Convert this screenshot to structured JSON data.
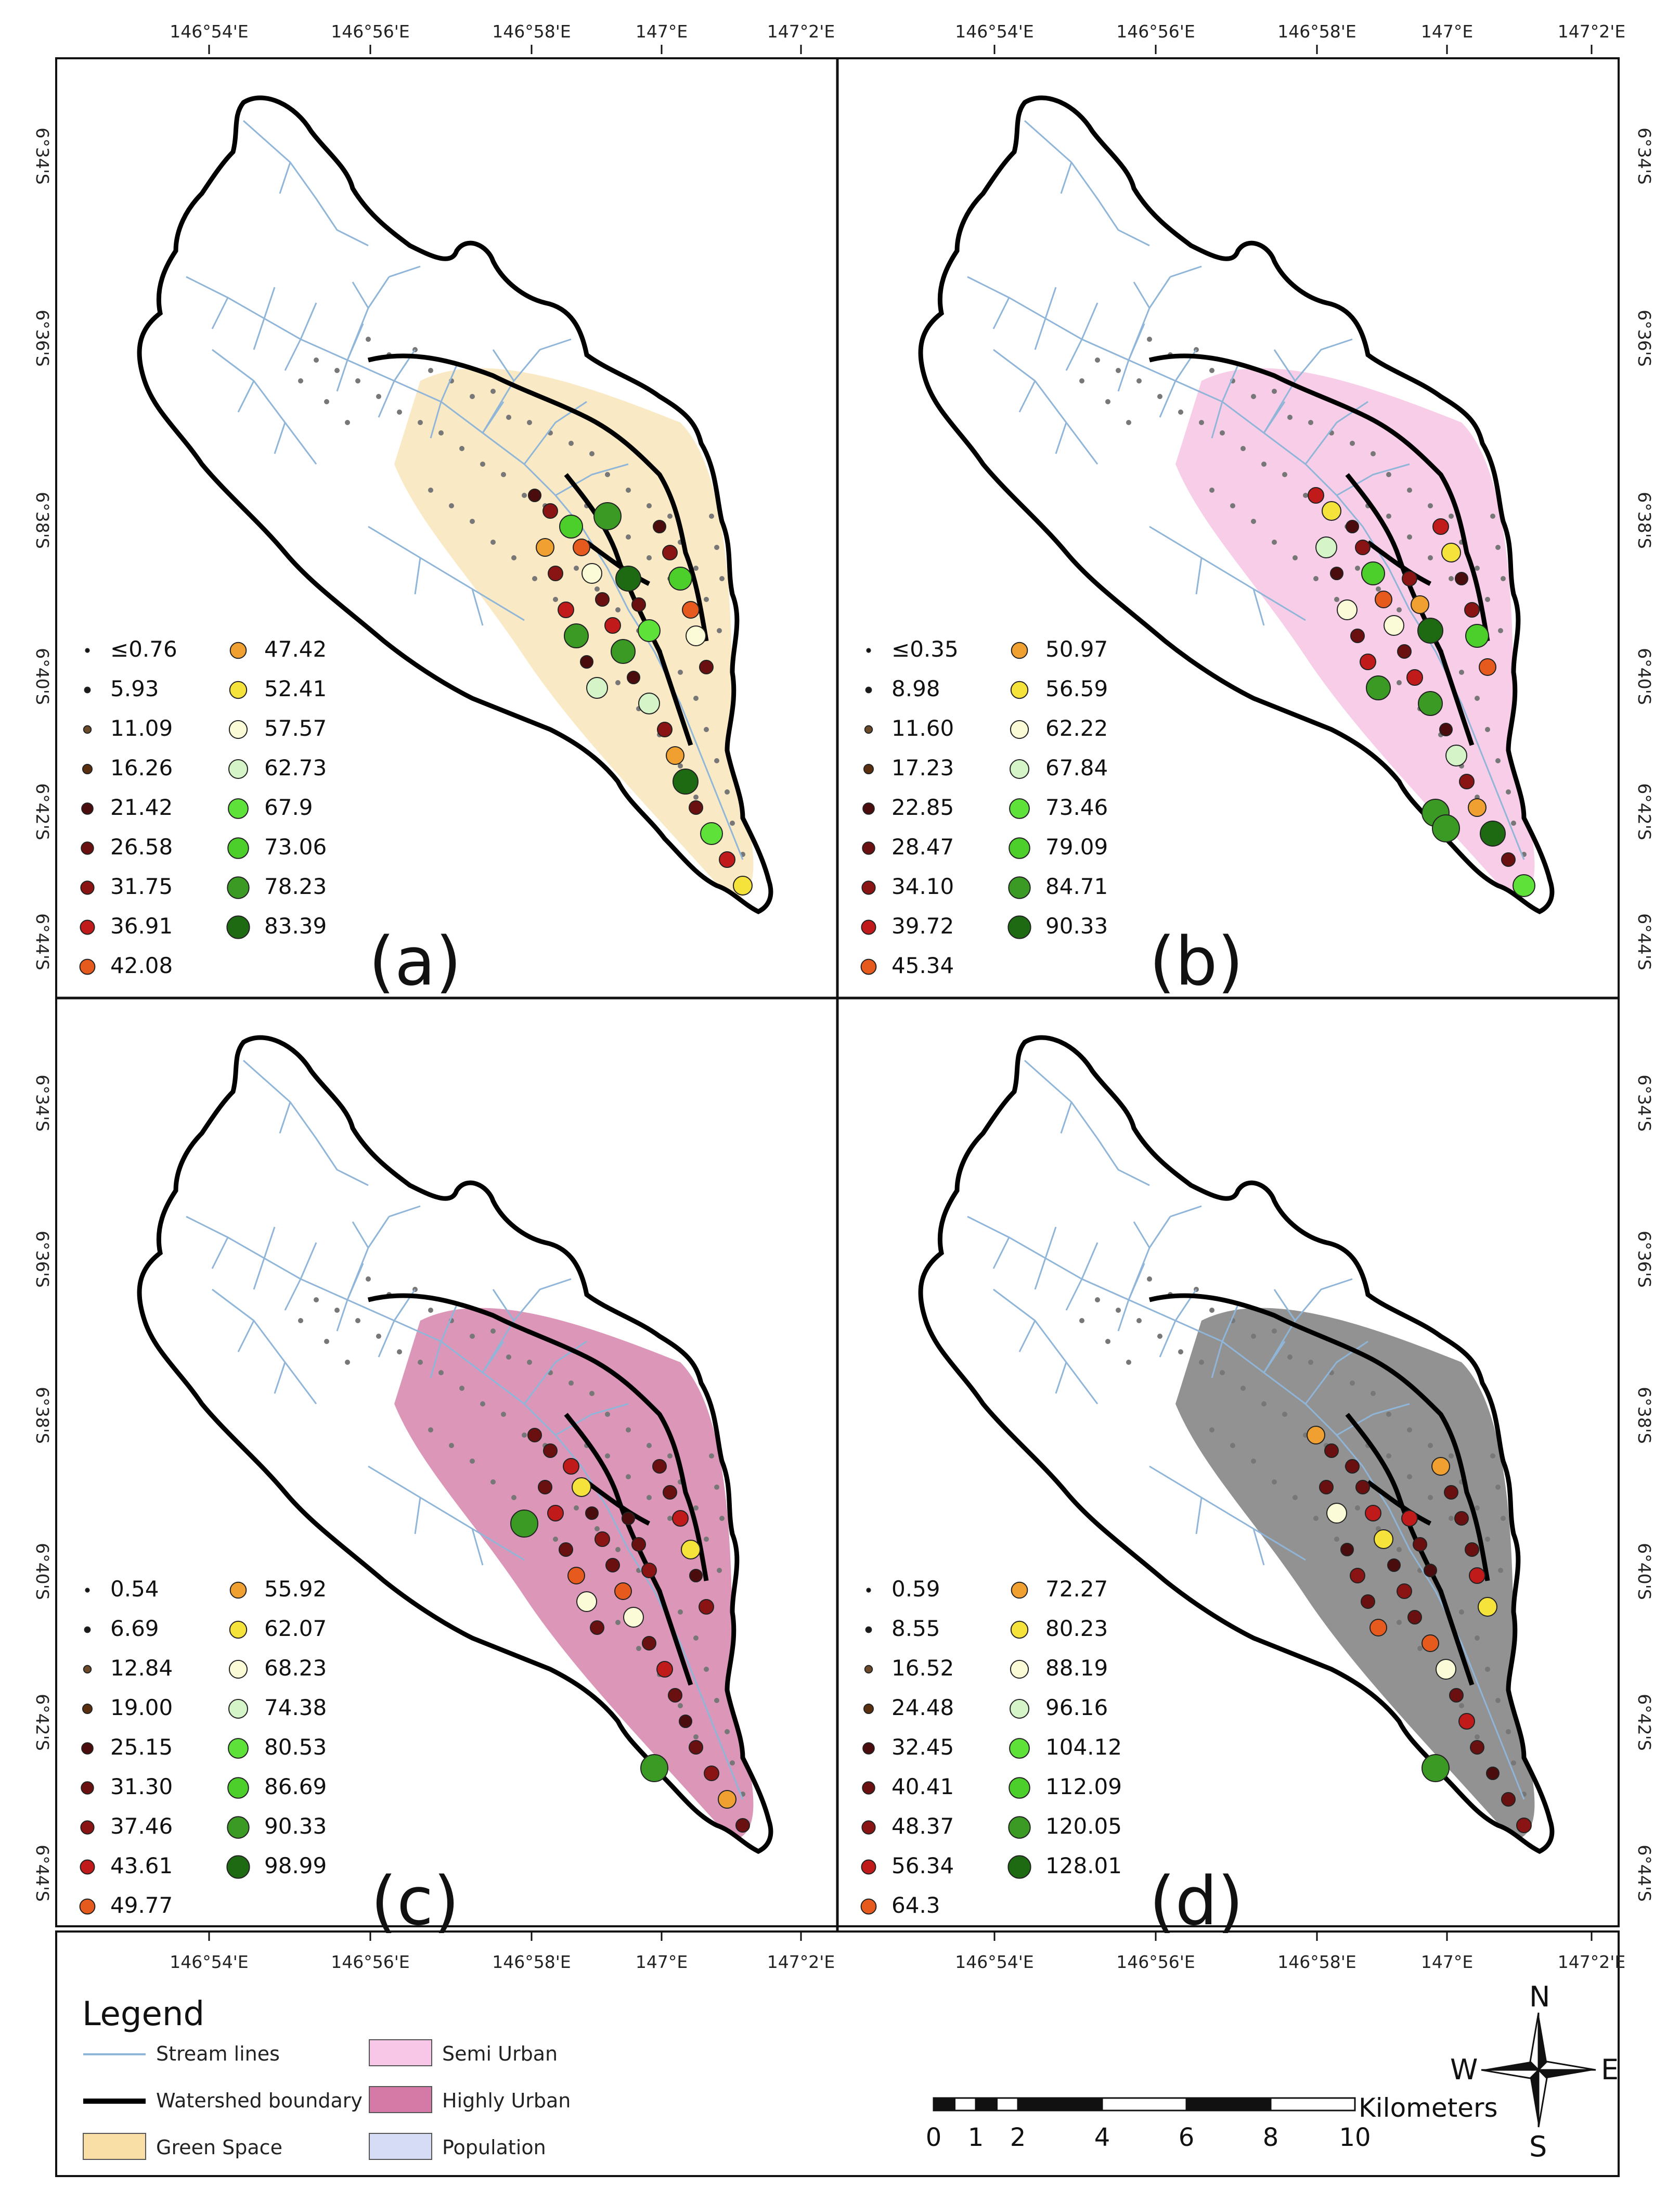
{
  "axes": {
    "lon_ticks": [
      "146°54'E",
      "146°56'E",
      "146°58'E",
      "147°E",
      "147°2'E"
    ],
    "lat_ticks": [
      "6°34'S",
      "6°36'S",
      "6°38'S",
      "6°40'S",
      "6°42'S",
      "6°44'S"
    ]
  },
  "panels": [
    {
      "label": "(a)",
      "land_color": "#f7dfac",
      "col1": [
        "≤0.76",
        "5.93",
        "11.09",
        "16.26",
        "21.42",
        "26.58",
        "31.75",
        "36.91",
        "42.08"
      ],
      "col2": [
        "47.42",
        "52.41",
        "57.57",
        "62.73",
        "67.9",
        "73.06",
        "78.23",
        "83.39"
      ]
    },
    {
      "label": "(b)",
      "land_color": "#f3b8dd",
      "col1": [
        "≤0.35",
        "8.98",
        "11.60",
        "17.23",
        "22.85",
        "28.47",
        "34.10",
        "39.72",
        "45.34"
      ],
      "col2": [
        "50.97",
        "56.59",
        "62.22",
        "67.84",
        "73.46",
        "79.09",
        "84.71",
        "90.33"
      ]
    },
    {
      "label": "(c)",
      "land_color": "#cc6a9a",
      "col1": [
        "0.54",
        "6.69",
        "12.84",
        "19.00",
        "25.15",
        "31.30",
        "37.46",
        "43.61",
        "49.77"
      ],
      "col2": [
        "55.92",
        "62.07",
        "68.23",
        "74.38",
        "80.53",
        "86.69",
        "90.33",
        "98.99"
      ]
    },
    {
      "label": "(d)",
      "land_color": "#7f7f7f",
      "col1": [
        "0.59",
        "8.55",
        "16.52",
        "24.48",
        "32.45",
        "40.41",
        "48.37",
        "56.34",
        "64.3"
      ],
      "col2": [
        "72.27",
        "80.23",
        "88.19",
        "96.16",
        "104.12",
        "112.09",
        "120.05",
        "128.01"
      ]
    }
  ],
  "symbol_colors": {
    "col1": [
      "#111111",
      "#1a1a1a",
      "#6b4a2a",
      "#5a2f10",
      "#4a0c0c",
      "#6a1010",
      "#8a1414",
      "#c01a1a",
      "#e65a1e"
    ],
    "col2": [
      "#f0a030",
      "#f5e23a",
      "#fbfbd8",
      "#d5f5c8",
      "#5ee23a",
      "#4ccf2a",
      "#3a9a24",
      "#1e6a12"
    ]
  },
  "legend": {
    "title": "Legend",
    "items": [
      {
        "label": "Stream lines",
        "kind": "line",
        "color": "#8fb5d8"
      },
      {
        "label": "Watershed boundary",
        "kind": "thickline",
        "color": "#000000"
      },
      {
        "label": "Green Space",
        "kind": "box",
        "color": "#f9dfa5"
      },
      {
        "label": "Semi Urban",
        "kind": "box",
        "color": "#f8c6e6"
      },
      {
        "label": "Highly Urban",
        "kind": "box",
        "color": "#d57aa6"
      },
      {
        "label": "Population",
        "kind": "box",
        "color": "#d6dcf5"
      }
    ]
  },
  "scale_bar": {
    "unit": "Kilometers",
    "labels": [
      "0",
      "1",
      "2",
      "4",
      "6",
      "8",
      "10"
    ]
  },
  "compass": {
    "n": "N",
    "s": "S",
    "e": "E",
    "w": "W"
  },
  "colors": {
    "stream": "#8fb5d8",
    "boundary": "#000000",
    "dots": "#777777"
  }
}
